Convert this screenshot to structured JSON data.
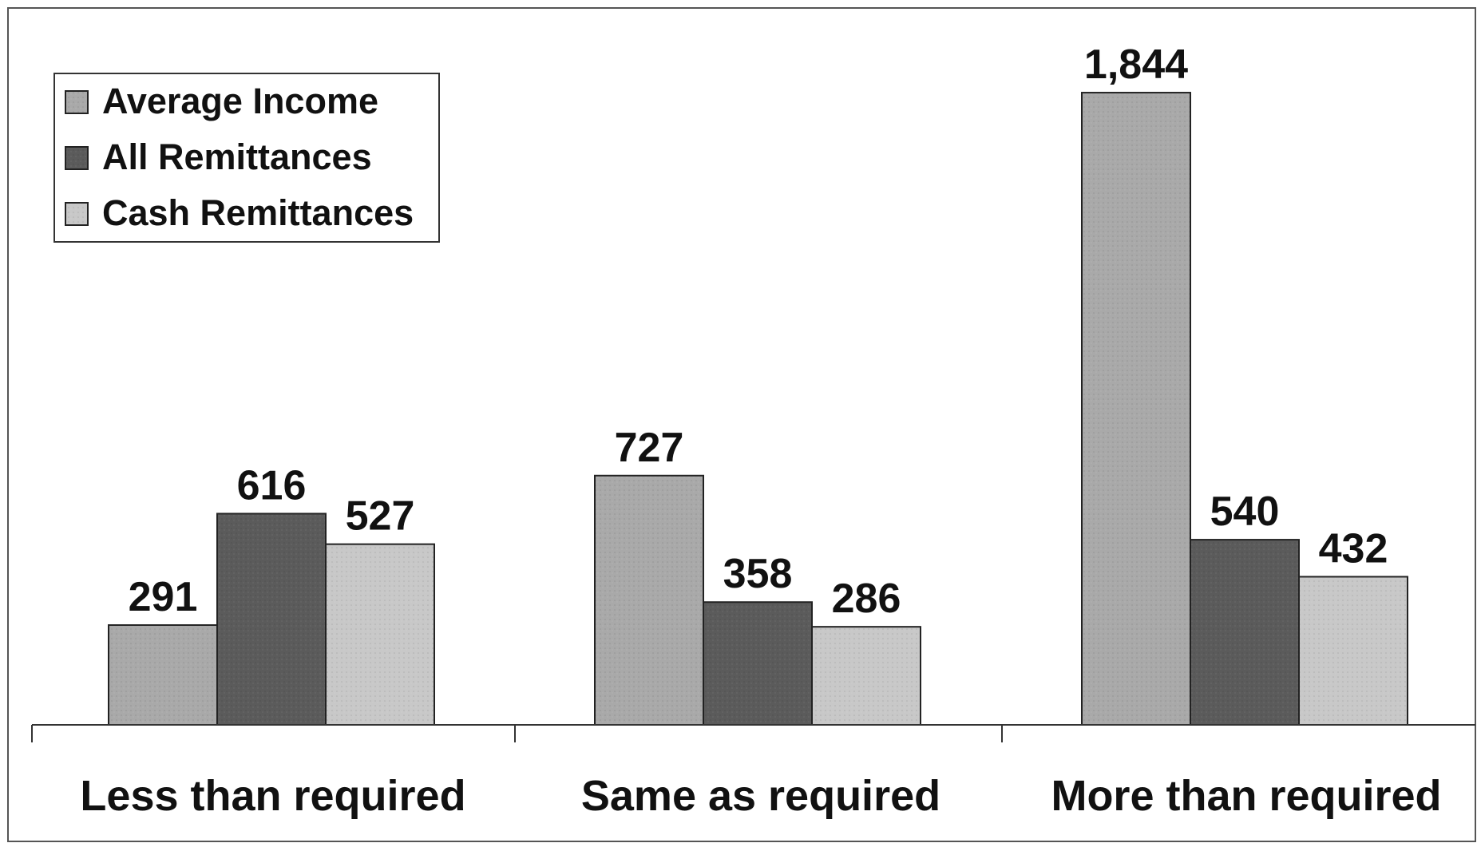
{
  "chart_data": {
    "type": "bar",
    "categories": [
      "Less than required",
      "Same as required",
      "More than required"
    ],
    "series": [
      {
        "name": "Average Income",
        "values": [
          291,
          727,
          1844
        ],
        "labels": [
          "291",
          "727",
          "1,844"
        ],
        "color": "#a9a9a9"
      },
      {
        "name": "All Remittances",
        "values": [
          616,
          358,
          540
        ],
        "labels": [
          "616",
          "358",
          "540"
        ],
        "color": "#5b5b5b"
      },
      {
        "name": "Cash Remittances",
        "values": [
          527,
          286,
          432
        ],
        "labels": [
          "527",
          "286",
          "432"
        ],
        "color": "#c8c8c8"
      }
    ],
    "title": "",
    "xlabel": "",
    "ylabel": "",
    "ylim": [
      0,
      1900
    ],
    "grid": false,
    "legend_position": "top-left"
  }
}
